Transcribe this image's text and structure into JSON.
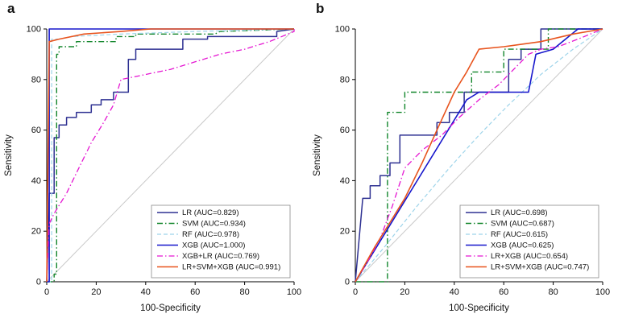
{
  "figure": {
    "panels": [
      {
        "label": "a"
      },
      {
        "label": "b"
      }
    ]
  },
  "chart_data": [
    {
      "type": "line",
      "panel_label": "a",
      "title": "",
      "xlabel": "100-Specificity",
      "ylabel": "Sensitivity",
      "xlim": [
        0,
        100
      ],
      "ylim": [
        0,
        100
      ],
      "xticks": [
        0,
        20,
        40,
        60,
        80,
        100
      ],
      "yticks": [
        0,
        20,
        40,
        60,
        80,
        100
      ],
      "grid": false,
      "diagonal_reference": true,
      "reference_color": "#c9c9c9",
      "legend_position": "bottom-right",
      "series": [
        {
          "name": "LR",
          "auc": 0.829,
          "label": "LR (AUC=0.829)",
          "color": "#2e3192",
          "dash": "solid",
          "width": 1.5,
          "points": [
            [
              0,
              0
            ],
            [
              1,
              35
            ],
            [
              3,
              35
            ],
            [
              3,
              57
            ],
            [
              5,
              57
            ],
            [
              5,
              62
            ],
            [
              8,
              62
            ],
            [
              8,
              65
            ],
            [
              12,
              65
            ],
            [
              12,
              67
            ],
            [
              18,
              67
            ],
            [
              18,
              70
            ],
            [
              22,
              70
            ],
            [
              22,
              72
            ],
            [
              27,
              72
            ],
            [
              27,
              75
            ],
            [
              33,
              75
            ],
            [
              33,
              88
            ],
            [
              36,
              88
            ],
            [
              36,
              92
            ],
            [
              55,
              92
            ],
            [
              55,
              96
            ],
            [
              65,
              96
            ],
            [
              65,
              97
            ],
            [
              93,
              97
            ],
            [
              93,
              99
            ],
            [
              100,
              100
            ]
          ]
        },
        {
          "name": "SVM",
          "auc": 0.934,
          "label": "SVM (AUC=0.934)",
          "color": "#12862b",
          "dash": "dashdot",
          "width": 1.4,
          "points": [
            [
              0,
              0
            ],
            [
              3,
              0
            ],
            [
              3,
              3
            ],
            [
              4,
              3
            ],
            [
              4,
              90
            ],
            [
              5,
              90
            ],
            [
              5,
              93
            ],
            [
              12,
              93
            ],
            [
              12,
              95
            ],
            [
              28,
              95
            ],
            [
              28,
              97
            ],
            [
              36,
              97
            ],
            [
              36,
              98
            ],
            [
              68,
              98
            ],
            [
              70,
              99
            ],
            [
              100,
              100
            ]
          ]
        },
        {
          "name": "RF",
          "auc": 0.978,
          "label": "RF (AUC=0.978)",
          "color": "#9ed4ea",
          "dash": "dash",
          "width": 1.2,
          "points": [
            [
              0,
              0
            ],
            [
              2,
              0
            ],
            [
              2,
              96
            ],
            [
              5,
              96
            ],
            [
              10,
              97
            ],
            [
              30,
              98
            ],
            [
              60,
              99
            ],
            [
              100,
              100
            ]
          ]
        },
        {
          "name": "XGB",
          "auc": 1.0,
          "label": "XGB (AUC=1.000)",
          "color": "#1616cc",
          "dash": "solid",
          "width": 1.6,
          "points": [
            [
              0,
              0
            ],
            [
              1,
              0
            ],
            [
              1,
              100
            ],
            [
              100,
              100
            ]
          ]
        },
        {
          "name": "XGB+LR",
          "auc": 0.769,
          "label": "XGB+LR (AUC=0.769)",
          "color": "#e516d2",
          "dash": "dashdot",
          "width": 1.3,
          "points": [
            [
              0,
              0
            ],
            [
              1,
              23
            ],
            [
              3,
              27
            ],
            [
              8,
              35
            ],
            [
              13,
              45
            ],
            [
              18,
              55
            ],
            [
              23,
              63
            ],
            [
              27,
              70
            ],
            [
              30,
              80
            ],
            [
              40,
              82
            ],
            [
              50,
              84
            ],
            [
              60,
              87
            ],
            [
              70,
              90
            ],
            [
              80,
              92
            ],
            [
              90,
              95
            ],
            [
              100,
              99
            ],
            [
              100,
              100
            ]
          ]
        },
        {
          "name": "LR+SVM+XGB",
          "auc": 0.991,
          "label": "LR+SVM+XGB (AUC=0.991)",
          "color": "#e8541e",
          "dash": "solid",
          "width": 1.6,
          "points": [
            [
              0,
              0
            ],
            [
              1,
              95
            ],
            [
              5,
              96
            ],
            [
              15,
              98
            ],
            [
              30,
              99
            ],
            [
              42,
              100
            ],
            [
              100,
              100
            ]
          ]
        }
      ]
    },
    {
      "type": "line",
      "panel_label": "b",
      "title": "",
      "xlabel": "100-Specificity",
      "ylabel": "Sensitivity",
      "xlim": [
        0,
        100
      ],
      "ylim": [
        0,
        100
      ],
      "xticks": [
        0,
        20,
        40,
        60,
        80,
        100
      ],
      "yticks": [
        0,
        20,
        40,
        60,
        80,
        100
      ],
      "grid": false,
      "diagonal_reference": true,
      "reference_color": "#c9c9c9",
      "legend_position": "bottom-right",
      "series": [
        {
          "name": "LR",
          "auc": 0.698,
          "label": "LR (AUC=0.698)",
          "color": "#2e3192",
          "dash": "solid",
          "width": 1.5,
          "points": [
            [
              0,
              0
            ],
            [
              3,
              33
            ],
            [
              6,
              33
            ],
            [
              6,
              38
            ],
            [
              10,
              38
            ],
            [
              10,
              42
            ],
            [
              14,
              42
            ],
            [
              14,
              47
            ],
            [
              18,
              47
            ],
            [
              18,
              58
            ],
            [
              33,
              58
            ],
            [
              33,
              63
            ],
            [
              38,
              63
            ],
            [
              38,
              67
            ],
            [
              44,
              67
            ],
            [
              44,
              75
            ],
            [
              62,
              75
            ],
            [
              62,
              88
            ],
            [
              67,
              88
            ],
            [
              67,
              92
            ],
            [
              75,
              92
            ],
            [
              75,
              100
            ],
            [
              100,
              100
            ]
          ]
        },
        {
          "name": "SVM",
          "auc": 0.687,
          "label": "SVM (AUC=0.687)",
          "color": "#12862b",
          "dash": "dashdot",
          "width": 1.4,
          "points": [
            [
              0,
              0
            ],
            [
              13,
              0
            ],
            [
              13,
              67
            ],
            [
              20,
              67
            ],
            [
              20,
              75
            ],
            [
              47,
              75
            ],
            [
              47,
              83
            ],
            [
              60,
              83
            ],
            [
              60,
              92
            ],
            [
              78,
              92
            ],
            [
              78,
              100
            ],
            [
              100,
              100
            ]
          ]
        },
        {
          "name": "RF",
          "auc": 0.615,
          "label": "RF (AUC=0.615)",
          "color": "#9ed4ea",
          "dash": "dash",
          "width": 1.2,
          "points": [
            [
              0,
              0
            ],
            [
              12,
              14
            ],
            [
              25,
              30
            ],
            [
              38,
              45
            ],
            [
              50,
              58
            ],
            [
              62,
              70
            ],
            [
              75,
              82
            ],
            [
              88,
              92
            ],
            [
              100,
              100
            ]
          ]
        },
        {
          "name": "XGB",
          "auc": 0.625,
          "label": "XGB (AUC=0.625)",
          "color": "#1616cc",
          "dash": "solid",
          "width": 1.6,
          "points": [
            [
              0,
              0
            ],
            [
              45,
              72
            ],
            [
              50,
              75
            ],
            [
              70,
              75
            ],
            [
              73,
              90
            ],
            [
              80,
              92
            ],
            [
              90,
              100
            ],
            [
              100,
              100
            ]
          ]
        },
        {
          "name": "LR+XGB",
          "auc": 0.654,
          "label": "LR+XGB (AUC=0.654)",
          "color": "#e516d2",
          "dash": "dashdot",
          "width": 1.3,
          "points": [
            [
              0,
              0
            ],
            [
              5,
              8
            ],
            [
              10,
              17
            ],
            [
              15,
              30
            ],
            [
              20,
              45
            ],
            [
              27,
              52
            ],
            [
              35,
              58
            ],
            [
              42,
              65
            ],
            [
              50,
              72
            ],
            [
              58,
              78
            ],
            [
              65,
              85
            ],
            [
              70,
              90
            ],
            [
              75,
              92
            ],
            [
              82,
              93
            ],
            [
              90,
              96
            ],
            [
              100,
              100
            ]
          ]
        },
        {
          "name": "LR+SVM+XGB",
          "auc": 0.747,
          "label": "LR+SVM+XGB (AUC=0.747)",
          "color": "#e8541e",
          "dash": "solid",
          "width": 1.6,
          "points": [
            [
              0,
              0
            ],
            [
              8,
              14
            ],
            [
              15,
              25
            ],
            [
              20,
              33
            ],
            [
              27,
              47
            ],
            [
              33,
              60
            ],
            [
              40,
              75
            ],
            [
              45,
              83
            ],
            [
              50,
              92
            ],
            [
              60,
              93
            ],
            [
              75,
              95
            ],
            [
              88,
              98
            ],
            [
              100,
              100
            ]
          ]
        }
      ]
    }
  ]
}
